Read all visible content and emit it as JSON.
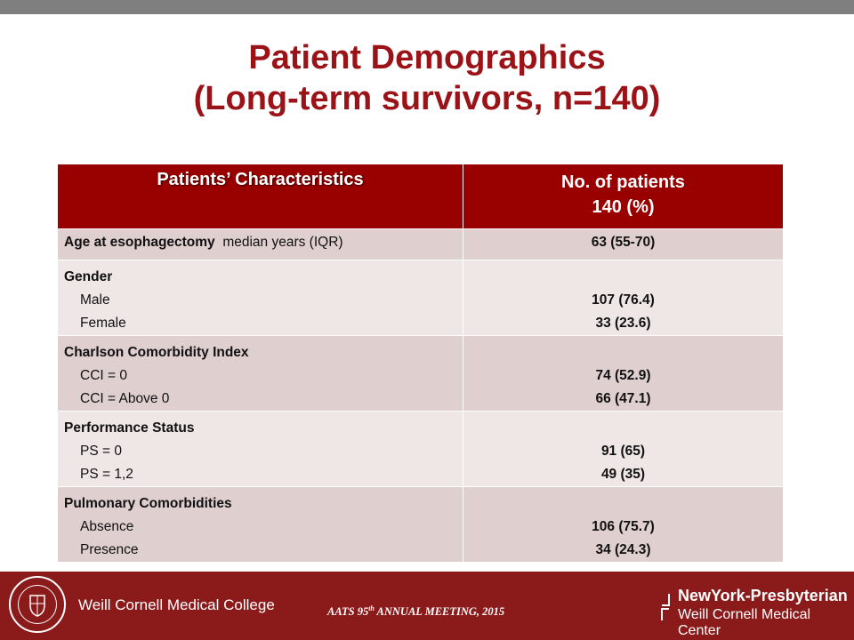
{
  "title": {
    "line1": "Patient Demographics",
    "line2": "(Long-term survivors, n=140)"
  },
  "table": {
    "header": {
      "col1": "Patients’ Characteristics",
      "col2_line1": "No. of patients",
      "col2_line2": "140 (%)"
    },
    "age": {
      "label_bold": "Age at esophagectomy",
      "label_rest": "median years (IQR)",
      "value": "63 (55-70)"
    },
    "gender": {
      "heading": "Gender",
      "sub1": "Male",
      "sub2": "Female",
      "val1": "107 (76.4)",
      "val2": "33 (23.6)"
    },
    "cci": {
      "heading": "Charlson Comorbidity Index",
      "sub1": "CCI = 0",
      "sub2": "CCI = Above 0",
      "val1": "74 (52.9)",
      "val2": "66 (47.1)"
    },
    "ps": {
      "heading": "Performance Status",
      "sub1": "PS = 0",
      "sub2": "PS = 1,2",
      "val1": "91 (65)",
      "val2": "49 (35)"
    },
    "pulm": {
      "heading": "Pulmonary Comorbidities",
      "sub1": "Absence",
      "sub2": "Presence",
      "val1": "106 (75.7)",
      "val2": "34 (24.3)"
    }
  },
  "footer": {
    "left_logo_text": "Weill Cornell Medical College",
    "meeting_pre": "AATS 95",
    "meeting_sup": "th",
    "meeting_post": " ANNUAL MEETING, 2015",
    "right_logo_line1": "NewYork-Presbyterian",
    "right_logo_line2": "Weill Cornell Medical Center"
  },
  "colors": {
    "title": "#9b1217",
    "header_bg": "#990000",
    "row_dark": "#dfcfcf",
    "row_light": "#efe6e6",
    "footer_bg": "#8b1a1a",
    "top_bar": "#7f7f7f"
  }
}
